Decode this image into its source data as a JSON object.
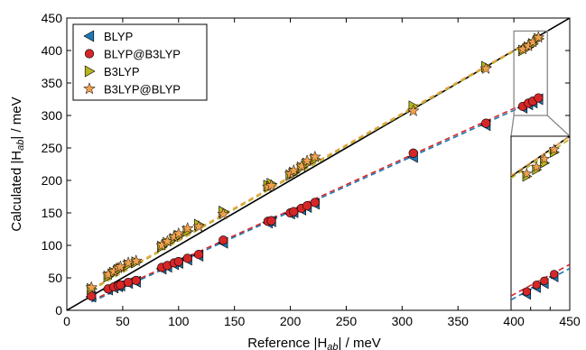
{
  "chart_data": {
    "type": "scatter",
    "xlabel": "Reference |H",
    "xlabel_sub": "ab",
    "xlabel_tail": "| / meV",
    "ylabel": "Calculated |H",
    "ylabel_sub": "ab",
    "ylabel_tail": "| / meV",
    "xlim": [
      0,
      450
    ],
    "ylim": [
      0,
      450
    ],
    "xticks": [
      "0",
      "50",
      "100",
      "150",
      "200",
      "250",
      "300",
      "350",
      "400",
      "450"
    ],
    "yticks": [
      "0",
      "50",
      "100",
      "150",
      "200",
      "250",
      "300",
      "350",
      "400",
      "450"
    ],
    "inset_xticks": [
      "400",
      "410",
      "420",
      "430"
    ],
    "legend_position": "top-left",
    "grid": false,
    "reference_line": "y = x",
    "x": [
      22,
      37,
      42,
      46,
      48,
      55,
      62,
      85,
      90,
      96,
      100,
      108,
      118,
      140,
      180,
      183,
      200,
      203,
      210,
      215,
      222,
      310,
      375,
      408,
      413,
      417,
      422
    ],
    "series": [
      {
        "name": "BLYP",
        "marker": "triangle-left",
        "color": "#1f77b4",
        "values": [
          21,
          32,
          35,
          37,
          38,
          42,
          44,
          64,
          67,
          71,
          73,
          78,
          84,
          104,
          135,
          137,
          149,
          151,
          155,
          159,
          164,
          236,
          285,
          312,
          317,
          320,
          325
        ]
      },
      {
        "name": "BLYP@B3LYP",
        "marker": "circle",
        "color": "#d62728",
        "values": [
          22,
          33,
          36,
          38,
          39,
          43,
          46,
          66,
          69,
          73,
          75,
          80,
          86,
          108,
          137,
          138,
          150,
          152,
          157,
          161,
          166,
          242,
          288,
          314,
          319,
          322,
          327
        ]
      },
      {
        "name": "B3LYP",
        "marker": "triangle-right",
        "color": "#b5b51f",
        "values": [
          33,
          52,
          58,
          62,
          64,
          70,
          74,
          98,
          104,
          110,
          115,
          122,
          132,
          152,
          192,
          195,
          208,
          212,
          220,
          226,
          233,
          314,
          375,
          400,
          405,
          410,
          418
        ]
      },
      {
        "name": "B3LYP@BLYP",
        "marker": "star",
        "color": "#f0a050",
        "values": [
          35,
          55,
          60,
          65,
          67,
          73,
          76,
          100,
          106,
          113,
          118,
          126,
          129,
          148,
          190,
          192,
          210,
          215,
          222,
          230,
          236,
          307,
          372,
          402,
          407,
          413,
          420
        ]
      }
    ],
    "fits": [
      {
        "name": "BLYP fit",
        "color": "#1f77b4",
        "x": [
          22,
          422
        ],
        "y": [
          13,
          325
        ]
      },
      {
        "name": "BLYP@B3LYP fit",
        "color": "#d62728",
        "x": [
          22,
          422
        ],
        "y": [
          15,
          328
        ]
      },
      {
        "name": "B3LYP fit",
        "color": "#b5b51f",
        "x": [
          22,
          422
        ],
        "y": [
          31,
          420
        ]
      },
      {
        "name": "B3LYP@BLYP fit",
        "color": "#f0a050",
        "x": [
          22,
          422
        ],
        "y": [
          33,
          422
        ]
      }
    ],
    "inset": {
      "xlim": [
        400,
        430
      ],
      "ylim": [
        300,
        430
      ]
    }
  }
}
